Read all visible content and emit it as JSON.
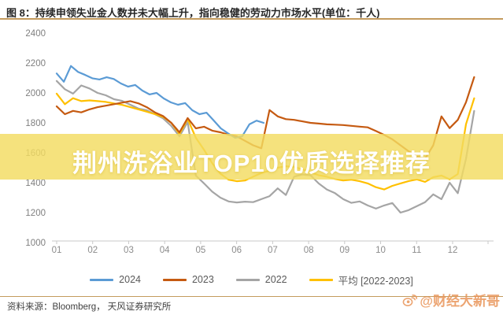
{
  "header": {
    "title": "图 8：持续申领失业金人数并未大幅上升，指向稳健的劳动力市场水平(单位：千人)"
  },
  "overlay": {
    "banner_text": "荆州洗浴业TOP10优质选择推荐",
    "band_color": "rgba(243,220,96,0.82)"
  },
  "footer": {
    "source_label": "资料来源：Bloomberg， 天风证券研究所",
    "watermark_text": "@财经大新哥"
  },
  "colors": {
    "accent_gold_rule": "#c49b5e",
    "axis_text": "#7f7f7f",
    "axis_line": "#c9c9c9",
    "legend_text": "#595959",
    "watermark_orange": "rgba(233,148,88,0.85)"
  },
  "chart_data": {
    "type": "line",
    "title": "持续申领失业金人数（单位：千人）",
    "xlabel": "",
    "ylabel": "",
    "unit": "千人",
    "grid": false,
    "legend_position": "bottom",
    "ylim": [
      1000,
      2400
    ],
    "y_ticks": [
      1000,
      1200,
      1400,
      1600,
      1800,
      2000,
      2200,
      2400
    ],
    "x_ticks": [
      "01",
      "02",
      "03",
      "04",
      "05",
      "06",
      "07",
      "08",
      "09",
      "10",
      "11",
      "12"
    ],
    "series": [
      {
        "name": "2024",
        "color": "#5B9BD5",
        "x_start_month": 1,
        "x_end_month": 6.75,
        "values": [
          2130,
          2075,
          2180,
          2140,
          2120,
          2098,
          2090,
          2105,
          2093,
          2063,
          2042,
          2053,
          2016,
          1990,
          2000,
          1963,
          1937,
          1921,
          1932,
          1884,
          1858,
          1868,
          1816,
          1763,
          1730,
          1700,
          1710,
          1790,
          1815,
          1800
        ]
      },
      {
        "name": "2023",
        "color": "#C55A11",
        "x_start_month": 1,
        "x_end_month": 12.6,
        "values": [
          1910,
          1858,
          1880,
          1870,
          1890,
          1905,
          1915,
          1925,
          1935,
          1945,
          1930,
          1905,
          1870,
          1845,
          1800,
          1737,
          1832,
          1763,
          1774,
          1748,
          1737,
          1721,
          1710,
          1680,
          1650,
          1630,
          1886,
          1843,
          1825,
          1820,
          1810,
          1800,
          1795,
          1790,
          1788,
          1785,
          1780,
          1775,
          1770,
          1745,
          1720,
          1690,
          1650,
          1610,
          1575,
          1560,
          1650,
          1843,
          1765,
          1820,
          1938,
          2106
        ]
      },
      {
        "name": "2022",
        "color": "#A5A5A5",
        "x_start_month": 1,
        "x_end_month": 12.6,
        "values": [
          2080,
          2025,
          1995,
          2050,
          2030,
          2000,
          1984,
          1958,
          1947,
          1921,
          1895,
          1884,
          1858,
          1830,
          1779,
          1710,
          1806,
          1448,
          1395,
          1340,
          1300,
          1275,
          1268,
          1273,
          1270,
          1290,
          1310,
          1362,
          1318,
          1440,
          1455,
          1450,
          1395,
          1355,
          1330,
          1290,
          1265,
          1275,
          1248,
          1227,
          1248,
          1264,
          1200,
          1217,
          1243,
          1270,
          1322,
          1290,
          1400,
          1330,
          1560,
          1880
        ]
      },
      {
        "name": "平均 [2022-2023]",
        "color": "#FFC000",
        "x_start_month": 1,
        "x_end_month": 12.6,
        "values": [
          1995,
          1925,
          1965,
          1945,
          1950,
          1945,
          1940,
          1930,
          1920,
          1905,
          1890,
          1875,
          1858,
          1840,
          1800,
          1726,
          1826,
          1700,
          1620,
          1530,
          1460,
          1420,
          1410,
          1415,
          1440,
          1465,
          1480,
          1500,
          1510,
          1505,
          1490,
          1470,
          1450,
          1440,
          1425,
          1415,
          1420,
          1410,
          1395,
          1370,
          1355,
          1379,
          1395,
          1411,
          1422,
          1406,
          1437,
          1448,
          1422,
          1458,
          1791,
          1964
        ]
      }
    ]
  }
}
